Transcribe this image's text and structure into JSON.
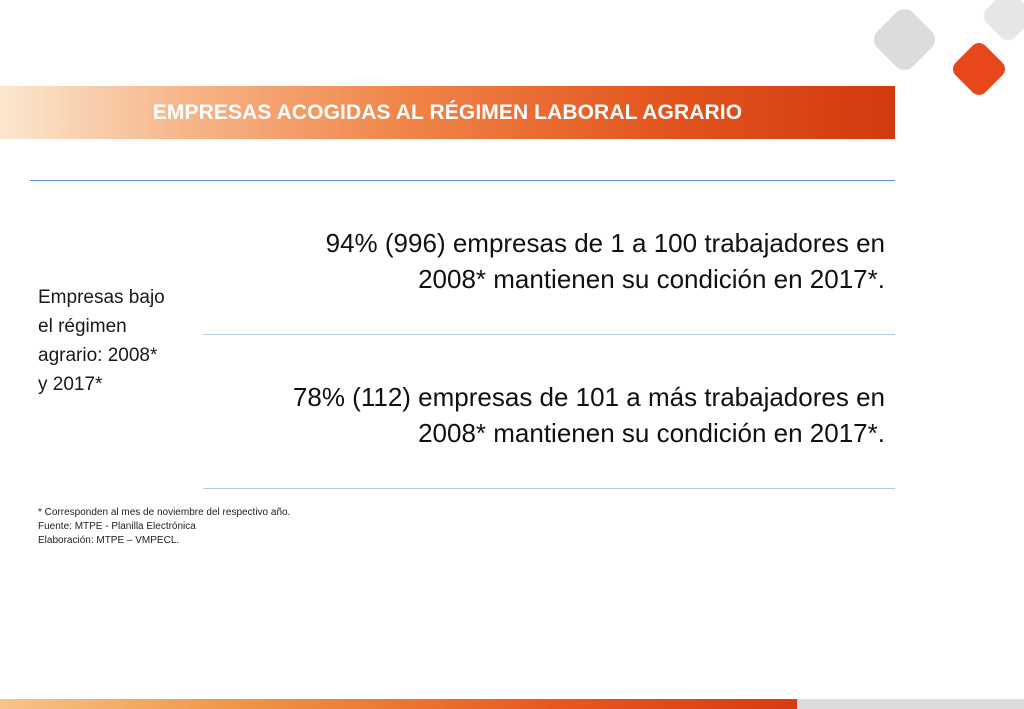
{
  "header": {
    "title": "EMPRESAS ACOGIDAS AL RÉGIMEN LABORAL AGRARIO"
  },
  "logo": {
    "icon": "diamond-shapes-logo",
    "colors": [
      "#dcdcdc",
      "#e8471c",
      "#f07d2b"
    ]
  },
  "table": {
    "left_label_lines": [
      "Empresas bajo",
      "el régimen",
      "agrario: 2008*",
      "y 2017*"
    ],
    "rows": [
      {
        "lines": [
          "94% (996) empresas de 1 a 100 trabajadores en",
          "2008* mantienen su condición en 2017*."
        ]
      },
      {
        "lines": [
          "78% (112) empresas de 101 a más trabajadores en",
          "2008* mantienen su condición en 2017*."
        ]
      }
    ]
  },
  "notes": [
    "* Corresponden al mes de noviembre del respectivo año.",
    "Fuente: MTPE - Planilla Electrónica",
    "Elaboración: MTPE – VMPECL."
  ],
  "colors": {
    "accent_orange": "#e2541d",
    "rule_blue": "#5b8bd0"
  }
}
